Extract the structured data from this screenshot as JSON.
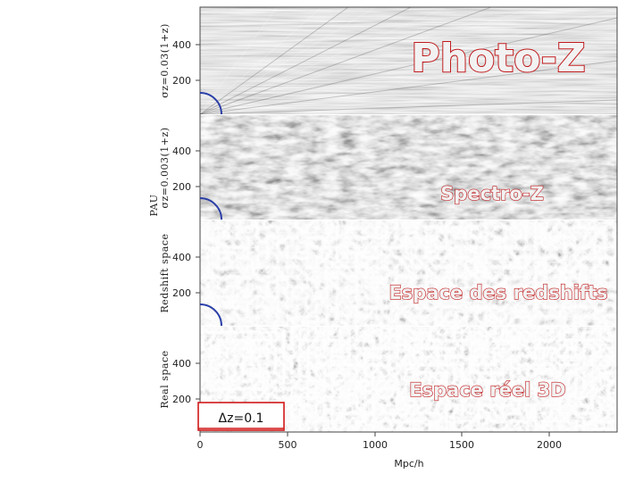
{
  "panels": [
    {
      "id": "photoz",
      "label_line1": "σz=0.03(1+z)",
      "label_line2": "",
      "overlay": "Photo-Z",
      "yticks": [
        "400",
        "200"
      ]
    },
    {
      "id": "spectroz",
      "label_line1": "σz=0.003(1+z)",
      "label_line2": "PAU",
      "overlay": "Spectro-Z",
      "yticks": [
        "400",
        "200"
      ]
    },
    {
      "id": "redshift",
      "label_line1": "Redshift  space",
      "label_line2": "",
      "overlay": "Espace des redshifts",
      "yticks": [
        "400",
        "200"
      ]
    },
    {
      "id": "real",
      "label_line1": "Real  space",
      "label_line2": "",
      "overlay": "Espace réel 3D",
      "yticks": [
        "400",
        "200"
      ]
    }
  ],
  "xaxis": {
    "ticks": [
      "0",
      "500",
      "1000",
      "1500",
      "2000"
    ],
    "unit": "Mpc/h"
  },
  "delta_z_label": "Δz=0.1",
  "colors": {
    "overlay_stroke": "#c0191b",
    "overlay_fill": "#f2f2f2",
    "arc": "#2b3fa8",
    "dz_box": "#d01818"
  }
}
